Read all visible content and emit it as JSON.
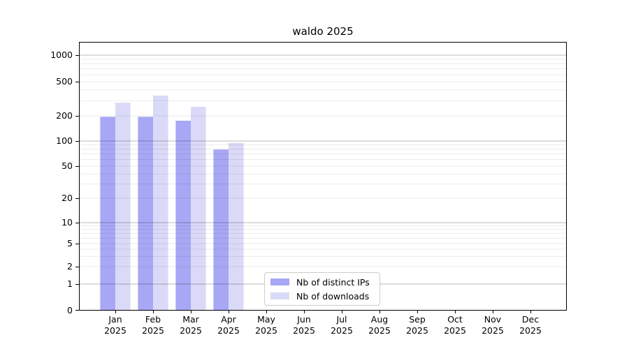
{
  "chart_data": {
    "type": "bar",
    "title": "waldo 2025",
    "year": "2025",
    "categories": [
      "Jan",
      "Feb",
      "Mar",
      "Apr",
      "May",
      "Jun",
      "Jul",
      "Aug",
      "Sep",
      "Oct",
      "Nov",
      "Dec"
    ],
    "series": [
      {
        "name": "Nb of distinct IPs",
        "color": "#a7a7f5",
        "values": [
          195,
          195,
          175,
          79,
          0,
          0,
          0,
          0,
          0,
          0,
          0,
          0
        ]
      },
      {
        "name": "Nb of downloads",
        "color": "#dadaf8",
        "values": [
          285,
          345,
          255,
          95,
          0,
          0,
          0,
          0,
          0,
          0,
          0,
          0
        ]
      }
    ],
    "yticks": [
      0,
      1,
      2,
      5,
      10,
      20,
      50,
      100,
      200,
      500,
      1000
    ],
    "yscale": "symlog",
    "ylim": [
      0,
      1400
    ],
    "xlabel": "",
    "ylabel": "",
    "grid": true,
    "grid_over_bars": true,
    "legend_position": "lower center-left",
    "major_grid_color": "#bdbdbd",
    "minor_grid_color": "#ebebeb",
    "background": "#ffffff"
  }
}
